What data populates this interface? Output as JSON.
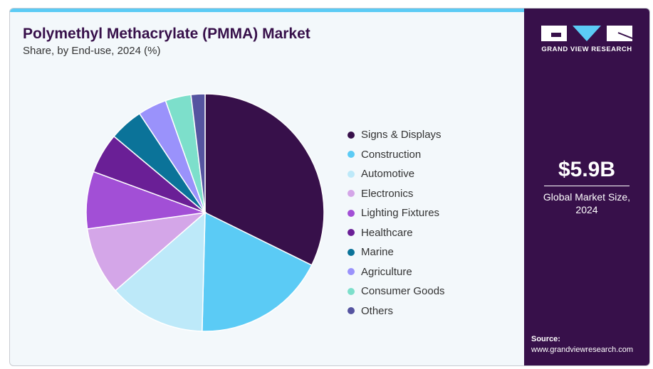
{
  "header": {
    "title": "Polymethyl Methacrylate (PMMA) Market",
    "subtitle": "Share, by End-use, 2024 (%)"
  },
  "brand": {
    "name": "GRAND VIEW RESEARCH"
  },
  "market": {
    "value": "$5.9B",
    "label": "Global Market Size, 2024"
  },
  "source": {
    "label": "Source:",
    "url": "www.grandviewresearch.com"
  },
  "chart_data": {
    "type": "pie",
    "title": "Polymethyl Methacrylate (PMMA) Market",
    "subtitle": "Share, by End-use, 2024 (%)",
    "legend_position": "right",
    "categories": [
      "Signs & Displays",
      "Construction",
      "Automotive",
      "Electronics",
      "Lighting Fixtures",
      "Healthcare",
      "Marine",
      "Agriculture",
      "Consumer Goods",
      "Others"
    ],
    "values": [
      32.3,
      18.1,
      13.2,
      9.2,
      7.8,
      5.5,
      4.6,
      3.9,
      3.5,
      1.9
    ],
    "colors": [
      "#37104a",
      "#5bcbf5",
      "#bde9f9",
      "#d4a6e8",
      "#a24fd6",
      "#6a1f96",
      "#0b7399",
      "#9a92fb",
      "#7ddfcb",
      "#5554a0"
    ]
  }
}
